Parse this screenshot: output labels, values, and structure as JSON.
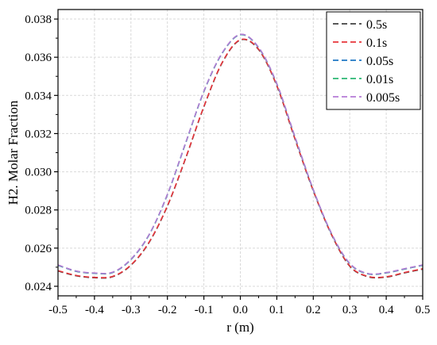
{
  "chart_data": {
    "type": "line",
    "xlabel": "r (m)",
    "ylabel": "H2. Molar Fraction",
    "xlim": [
      -0.5,
      0.5
    ],
    "ylim": [
      0.0235,
      0.0385
    ],
    "xticks": [
      -0.5,
      -0.4,
      -0.3,
      -0.2,
      -0.1,
      0.0,
      0.1,
      0.2,
      0.3,
      0.4,
      0.5
    ],
    "xtick_labels": [
      "-0.5",
      "-0.4",
      "-0.3",
      "-0.2",
      "-0.1",
      "0.0",
      "0.1",
      "0.2",
      "0.3",
      "0.4",
      "0.5"
    ],
    "yticks": [
      0.024,
      0.026,
      0.028,
      0.03,
      0.032,
      0.034,
      0.036,
      0.038
    ],
    "ytick_labels": [
      "0.024",
      "0.026",
      "0.028",
      "0.030",
      "0.032",
      "0.034",
      "0.036",
      "0.038"
    ],
    "grid": true,
    "legend_position": "top-right",
    "x": [
      -0.5,
      -0.45,
      -0.4,
      -0.35,
      -0.3,
      -0.25,
      -0.2,
      -0.15,
      -0.1,
      -0.05,
      0.0,
      0.05,
      0.1,
      0.15,
      0.2,
      0.25,
      0.3,
      0.35,
      0.4,
      0.45,
      0.5
    ],
    "series": [
      {
        "name": "0.5s",
        "color": "#404040",
        "values": [
          0.0248,
          0.02455,
          0.02445,
          0.0245,
          0.0251,
          0.0263,
          0.0282,
          0.0307,
          0.0334,
          0.0357,
          0.0369,
          0.0364,
          0.0345,
          0.0317,
          0.029,
          0.0267,
          0.02505,
          0.0245,
          0.02448,
          0.0247,
          0.0249
        ]
      },
      {
        "name": "0.1s",
        "color": "#e8343a",
        "values": [
          0.02482,
          0.02457,
          0.02447,
          0.02452,
          0.02512,
          0.02632,
          0.02822,
          0.03072,
          0.03342,
          0.03572,
          0.03692,
          0.03642,
          0.03452,
          0.03172,
          0.02902,
          0.02672,
          0.02507,
          0.02452,
          0.0245,
          0.02472,
          0.02492
        ]
      },
      {
        "name": "0.05s",
        "color": "#1f77c4",
        "values": [
          0.0251,
          0.02478,
          0.02468,
          0.02472,
          0.0254,
          0.0267,
          0.0288,
          0.0315,
          0.0342,
          0.0362,
          0.03718,
          0.0365,
          0.0346,
          0.0318,
          0.02905,
          0.02675,
          0.02518,
          0.02465,
          0.0247,
          0.0249,
          0.0251
        ]
      },
      {
        "name": "0.01s",
        "color": "#2bb673",
        "values": [
          0.02511,
          0.02479,
          0.02469,
          0.02473,
          0.02541,
          0.02671,
          0.02881,
          0.03151,
          0.03421,
          0.03621,
          0.03719,
          0.03651,
          0.03461,
          0.03181,
          0.02906,
          0.02676,
          0.02519,
          0.02466,
          0.02471,
          0.02491,
          0.02511
        ]
      },
      {
        "name": "0.005s",
        "color": "#b57bd6",
        "values": [
          0.02512,
          0.0248,
          0.0247,
          0.02474,
          0.02542,
          0.02672,
          0.02882,
          0.03152,
          0.03422,
          0.03622,
          0.0372,
          0.03652,
          0.03462,
          0.03182,
          0.02907,
          0.02677,
          0.0252,
          0.02467,
          0.02472,
          0.02492,
          0.02512
        ]
      }
    ]
  }
}
